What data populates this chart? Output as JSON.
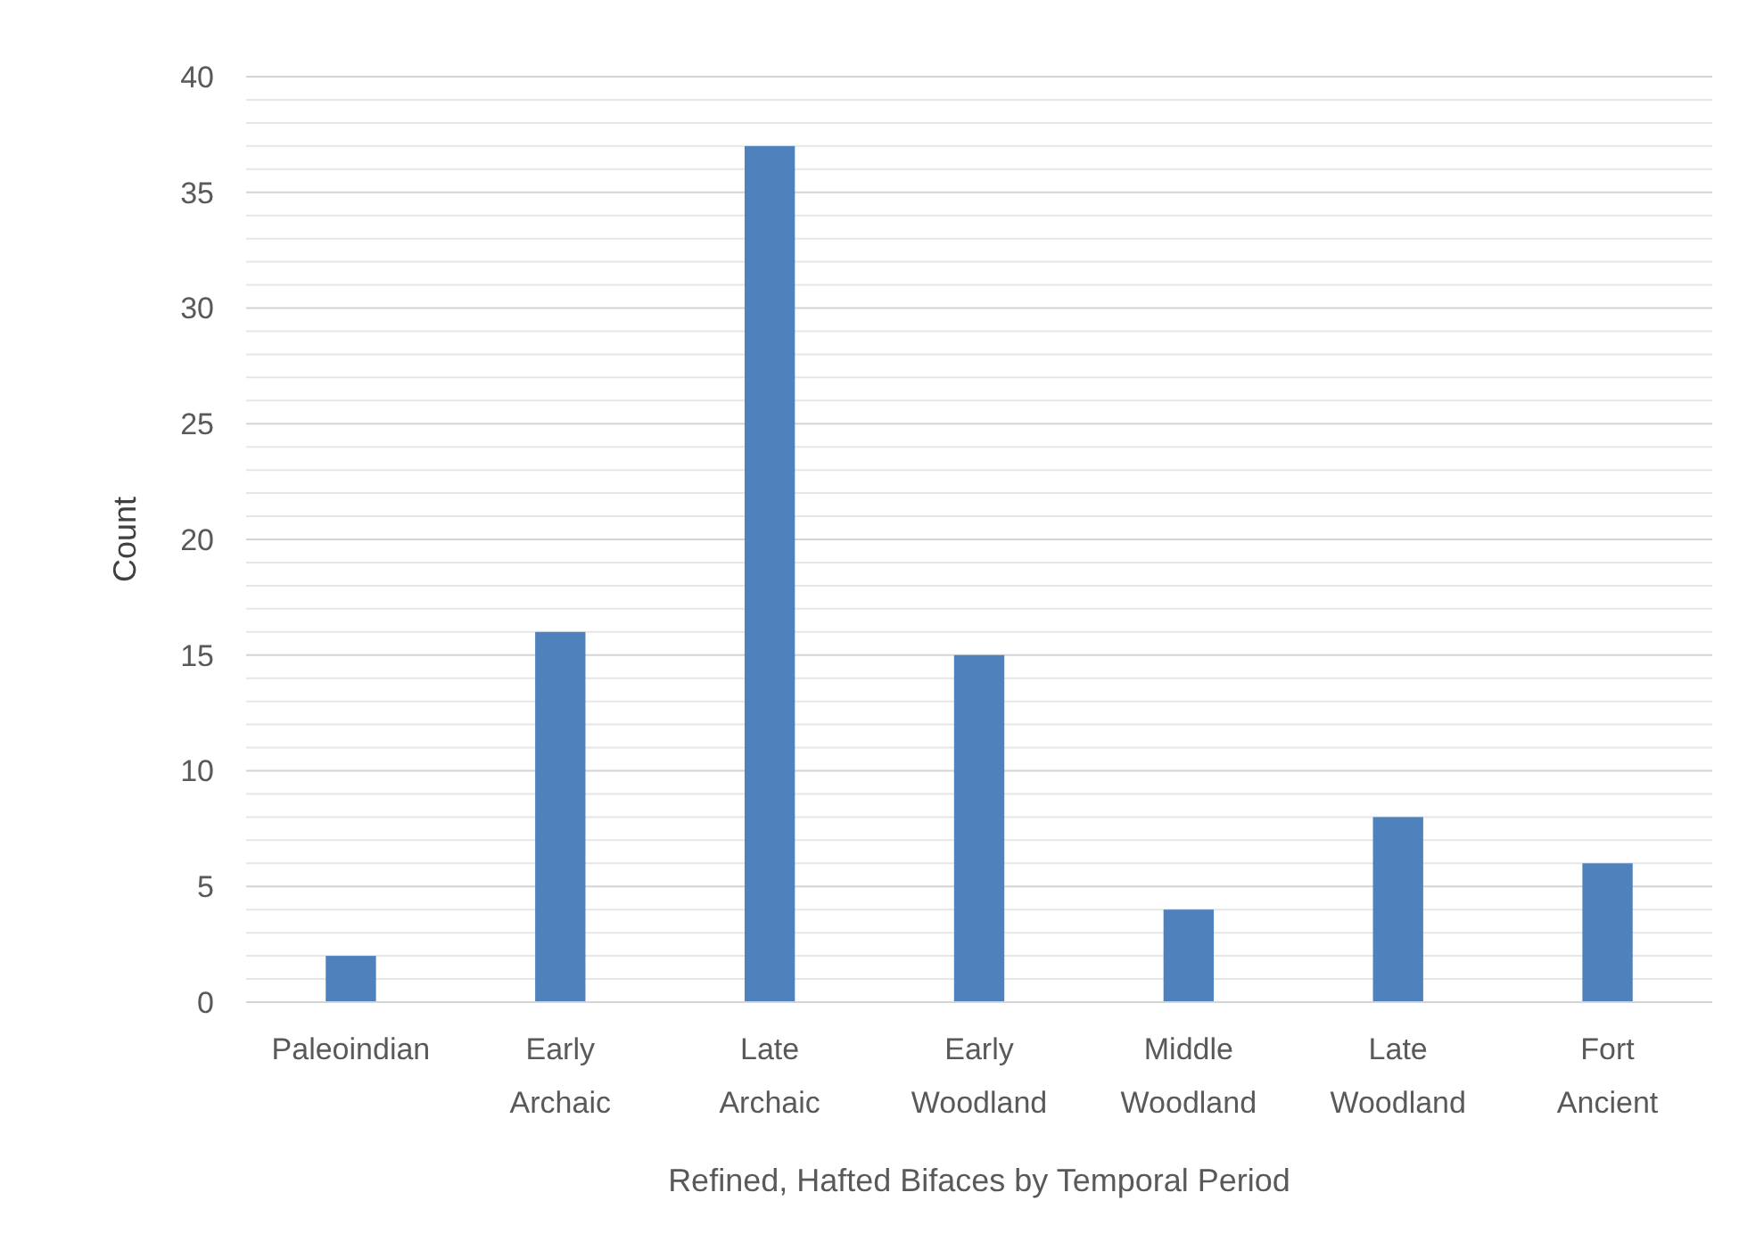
{
  "chart_data": {
    "type": "bar",
    "xlabel": "Refined, Hafted Bifaces by Temporal Period",
    "ylabel": "Count",
    "categories": [
      "Paleoindian",
      "Early Archaic",
      "Late Archaic",
      "Early Woodland",
      "Middle Woodland",
      "Late Woodland",
      "Fort Ancient"
    ],
    "values": [
      2,
      16,
      37,
      15,
      4,
      8,
      6
    ],
    "color": "#4f81bd",
    "ylim": [
      0,
      40
    ],
    "yticks": [
      0,
      {
        "value": 1,
        "label": null
      },
      {
        "value": 2,
        "label": null
      },
      {
        "value": 3,
        "label": null
      },
      {
        "value": 4,
        "label": null
      },
      5,
      {
        "value": 6,
        "label": null
      },
      {
        "value": 7,
        "label": null
      },
      {
        "value": 8,
        "label": null
      },
      {
        "value": 9,
        "label": null
      },
      10,
      {
        "value": 11,
        "label": null
      },
      {
        "value": 12,
        "label": null
      },
      {
        "value": 13,
        "label": null
      },
      {
        "value": 14,
        "label": null
      },
      15,
      {
        "value": 16,
        "label": null
      },
      {
        "value": 17,
        "label": null
      },
      {
        "value": 18,
        "label": null
      },
      {
        "value": 19,
        "label": null
      },
      20,
      {
        "value": 21,
        "label": null
      },
      {
        "value": 22,
        "label": null
      },
      {
        "value": 23,
        "label": null
      },
      {
        "value": 24,
        "label": null
      },
      25,
      {
        "value": 26,
        "label": null
      },
      {
        "value": 27,
        "label": null
      },
      {
        "value": 28,
        "label": null
      },
      {
        "value": 29,
        "label": null
      },
      30,
      {
        "value": 31,
        "label": null
      },
      {
        "value": 32,
        "label": null
      },
      {
        "value": 33,
        "label": null
      },
      {
        "value": 34,
        "label": null
      },
      35,
      {
        "value": 36,
        "label": null
      },
      {
        "value": 37,
        "label": null
      },
      {
        "value": 38,
        "label": null
      },
      {
        "value": 39,
        "label": null
      },
      40
    ],
    "grid": true
  }
}
